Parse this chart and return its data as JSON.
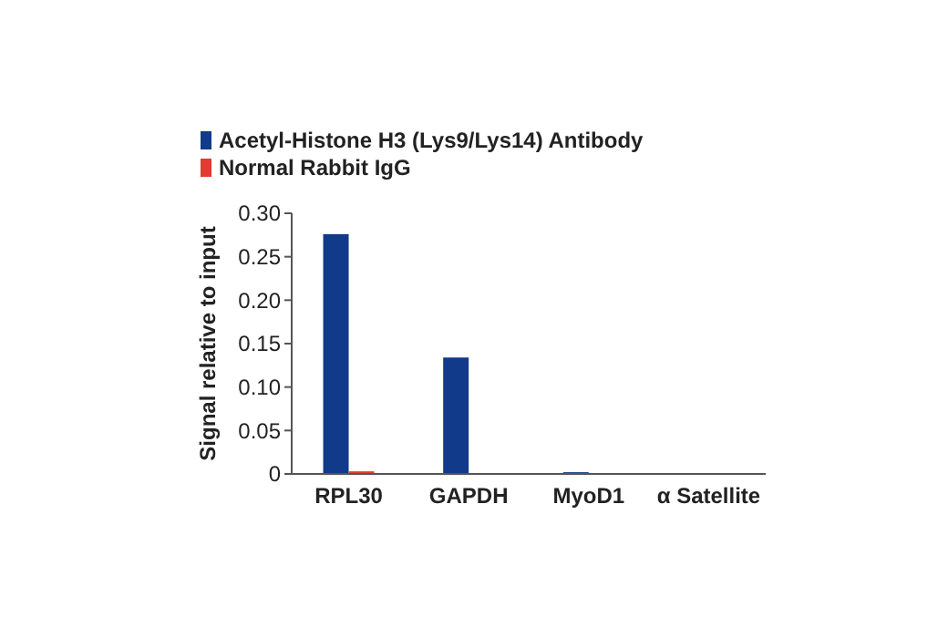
{
  "chart_data": {
    "type": "bar",
    "ylabel": "Signal relative to input",
    "categories": [
      "RPL30",
      "GAPDH",
      "MyoD1",
      "α Satellite"
    ],
    "series": [
      {
        "name": "Acetyl-Histone H3 (Lys9/Lys14) Antibody",
        "color": "#123a8a",
        "values": [
          0.276,
          0.134,
          0.002,
          0.001
        ]
      },
      {
        "name": "Normal Rabbit IgG",
        "color": "#e03c31",
        "values": [
          0.003,
          0,
          0,
          0
        ]
      }
    ],
    "ylim": [
      0,
      0.3
    ],
    "yticks": [
      {
        "value": 0,
        "label": "0"
      },
      {
        "value": 0.05,
        "label": "0.05"
      },
      {
        "value": 0.1,
        "label": "0.10"
      },
      {
        "value": 0.15,
        "label": "0.15"
      },
      {
        "value": 0.2,
        "label": "0.20"
      },
      {
        "value": 0.25,
        "label": "0.25"
      },
      {
        "value": 0.3,
        "label": "0.30"
      }
    ],
    "grid": false,
    "legend": "top left"
  }
}
